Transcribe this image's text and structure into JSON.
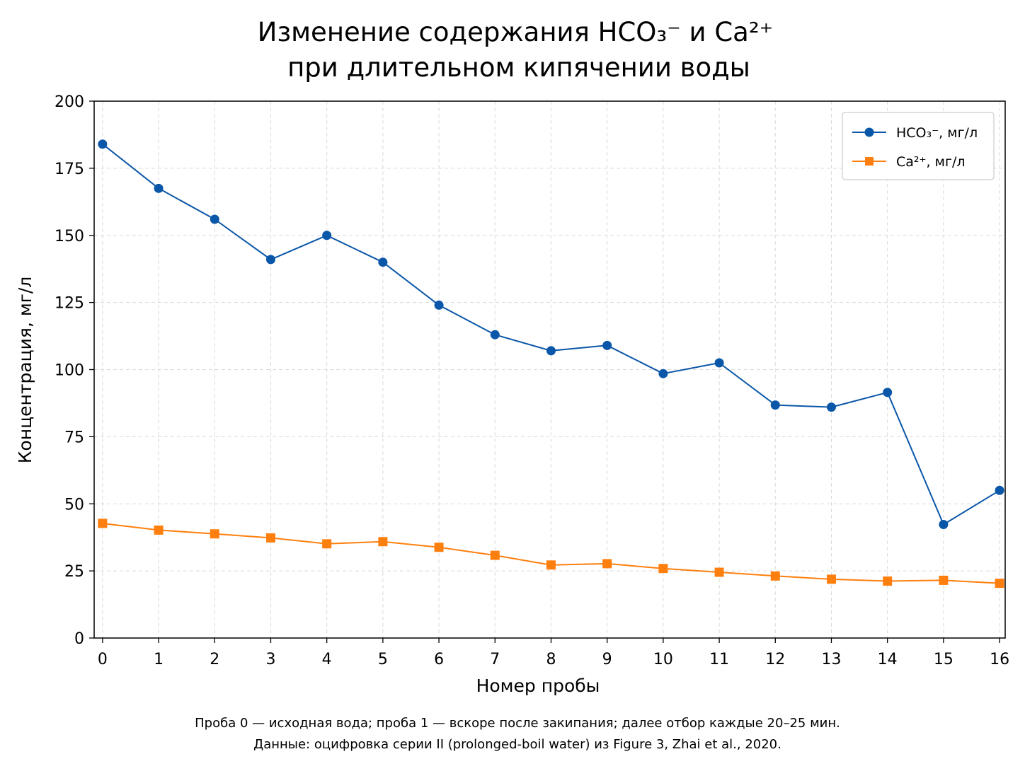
{
  "chart_data": {
    "type": "line",
    "title_line1": "Изменение содержания HCO₃⁻ и Ca²⁺",
    "title_line2": "при длительном кипячении воды",
    "xlabel": "Номер пробы",
    "ylabel": "Концентрация, мг/л",
    "x": [
      0,
      1,
      2,
      3,
      4,
      5,
      6,
      7,
      8,
      9,
      10,
      11,
      12,
      13,
      14,
      15,
      16
    ],
    "xlim": [
      -0.15,
      16.1
    ],
    "ylim": [
      0,
      200
    ],
    "yticks": [
      0,
      25,
      50,
      75,
      100,
      125,
      150,
      175,
      200
    ],
    "grid": true,
    "legend_position": "top-right",
    "series": [
      {
        "name": "HCO₃⁻, мг/л",
        "color": "#0a56a8",
        "marker": "circle",
        "values": [
          184,
          167.5,
          156,
          141,
          150,
          140,
          124,
          113,
          107,
          109,
          98.5,
          102.5,
          86.8,
          86,
          91.5,
          42.3,
          55
        ]
      },
      {
        "name": "Ca²⁺, мг/л",
        "color": "#ff7f0e",
        "marker": "square",
        "values": [
          42.7,
          40.2,
          38.8,
          37.3,
          35.1,
          35.9,
          33.8,
          30.8,
          27.2,
          27.7,
          25.9,
          24.5,
          23.1,
          21.9,
          21.2,
          21.5,
          20.4
        ]
      }
    ],
    "note_line1": "Проба 0 — исходная вода; проба 1 — вскоре после закипания; далее отбор каждые 20–25 мин.",
    "note_line2": "Данные: оцифровка серии II (prolonged-boil water) из Figure 3, Zhai et al., 2020."
  }
}
